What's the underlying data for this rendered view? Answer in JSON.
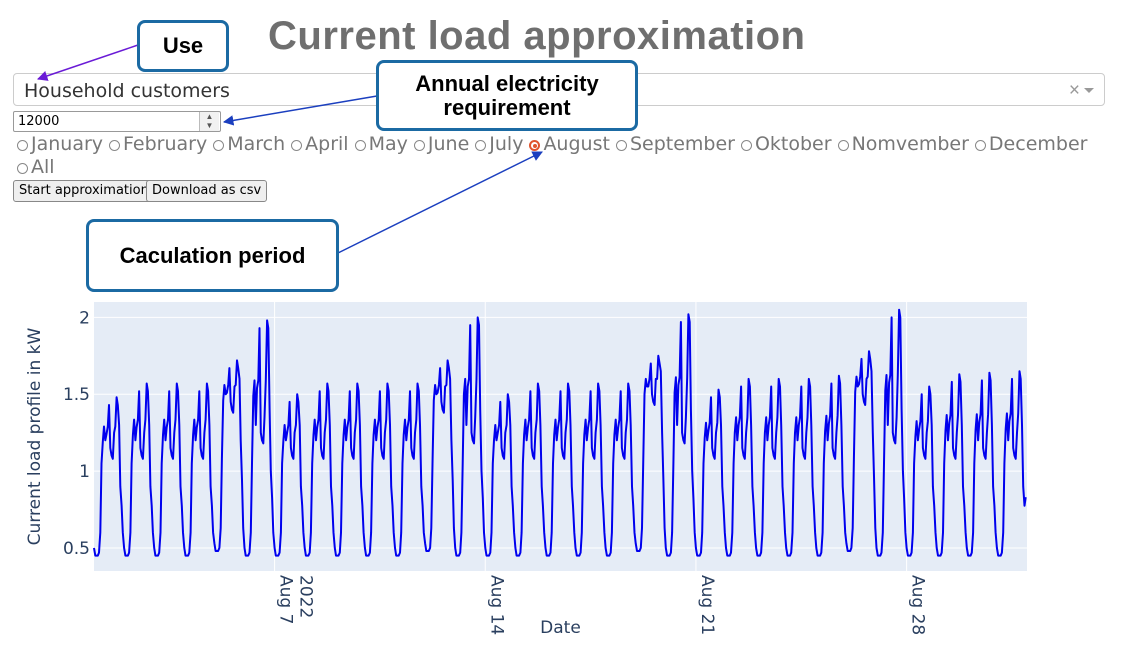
{
  "title": "Current load approximation",
  "use_select": {
    "value": "Household customers",
    "clear_glyph": "×"
  },
  "annual_input": {
    "value": "12000"
  },
  "months": [
    "January",
    "February",
    "March",
    "April",
    "May",
    "June",
    "July",
    "August",
    "September",
    "Oktober",
    "Nomvember",
    "December",
    "All"
  ],
  "selected_month": "August",
  "buttons": {
    "start": "Start approximation",
    "download": "Download as csv"
  },
  "callouts": {
    "use": "Use",
    "annual": "Annual electricity requirement",
    "period": "Caculation period"
  },
  "colors": {
    "series": "#0000ee",
    "plot_bg": "#e5ecf6",
    "callout_border": "#1b6aa3",
    "radio_selected": "#e0542d"
  },
  "chart_data": {
    "type": "line",
    "xlabel": "Date",
    "ylabel": "Current load profile in kW",
    "ylim": [
      0.35,
      2.1
    ],
    "yticks": [
      "0.5",
      "1",
      "1.5",
      "2"
    ],
    "xticks": [
      "Aug 7\n2022",
      "Aug 14",
      "Aug 21",
      "Aug 28"
    ],
    "x_start": "2022-08-01",
    "x_end": "2022-08-31 23:00",
    "series": [
      {
        "daily_peaks": [
          1.48,
          1.57,
          1.57,
          1.57,
          1.72,
          1.98,
          1.5,
          1.57,
          1.57,
          1.57,
          1.57,
          1.72,
          2.0,
          1.5,
          1.57,
          1.57,
          1.57,
          1.57,
          1.75,
          2.02,
          1.53,
          1.6,
          1.6,
          1.6,
          1.62,
          1.78,
          2.05,
          1.55,
          1.63,
          1.64,
          1.65
        ],
        "daily_troughs": [
          0.45,
          0.45,
          0.45,
          0.45,
          0.48,
          0.45,
          0.45,
          0.45,
          0.45,
          0.45,
          0.45,
          0.48,
          0.45,
          0.45,
          0.45,
          0.45,
          0.45,
          0.45,
          0.48,
          0.45,
          0.45,
          0.45,
          0.45,
          0.45,
          0.45,
          0.48,
          0.45,
          0.45,
          0.45,
          0.45,
          0.45
        ],
        "daily_mid_dip": [
          1.1,
          1.1,
          1.1,
          1.1,
          1.4,
          1.2,
          1.1,
          1.1,
          1.1,
          1.1,
          1.1,
          1.4,
          1.2,
          1.1,
          1.1,
          1.1,
          1.1,
          1.1,
          1.45,
          1.2,
          1.1,
          1.1,
          1.1,
          1.1,
          1.1,
          1.45,
          1.2,
          1.1,
          1.1,
          1.1,
          1.1
        ],
        "last_value": 0.83
      }
    ]
  }
}
